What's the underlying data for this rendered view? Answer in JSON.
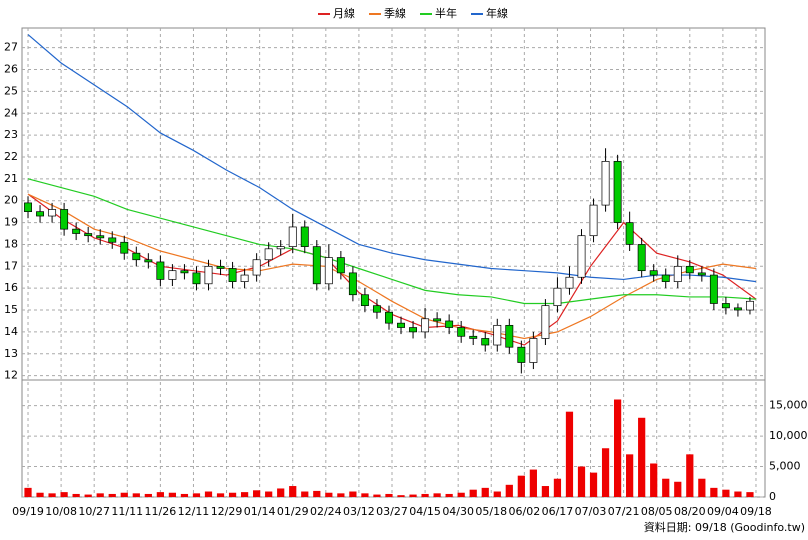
{
  "chart_data": {
    "type": "candlestick",
    "legend_position": "top",
    "grid": true,
    "footer": "資料日期: 09/18 (Goodinfo.tw)",
    "xlim": [
      -2,
      245
    ],
    "xticks": [
      {
        "value": 0,
        "label": "09/19"
      },
      {
        "value": 11,
        "label": "10/08"
      },
      {
        "value": 22,
        "label": "10/27"
      },
      {
        "value": 33,
        "label": "11/11"
      },
      {
        "value": 44,
        "label": "11/26"
      },
      {
        "value": 55,
        "label": "12/11"
      },
      {
        "value": 66,
        "label": "12/29"
      },
      {
        "value": 77,
        "label": "01/14"
      },
      {
        "value": 88,
        "label": "01/29"
      },
      {
        "value": 99,
        "label": "02/24"
      },
      {
        "value": 110,
        "label": "03/12"
      },
      {
        "value": 121,
        "label": "03/27"
      },
      {
        "value": 132,
        "label": "04/15"
      },
      {
        "value": 143,
        "label": "04/30"
      },
      {
        "value": 154,
        "label": "05/18"
      },
      {
        "value": 165,
        "label": "06/02"
      },
      {
        "value": 176,
        "label": "06/17"
      },
      {
        "value": 187,
        "label": "07/03"
      },
      {
        "value": 198,
        "label": "07/21"
      },
      {
        "value": 209,
        "label": "08/05"
      },
      {
        "value": 220,
        "label": "08/20"
      },
      {
        "value": 231,
        "label": "09/04"
      },
      {
        "value": 242,
        "label": "09/18"
      }
    ],
    "ylim": [
      11.8,
      27.9
    ],
    "yticks": [
      12,
      13,
      14,
      15,
      16,
      17,
      18,
      19,
      20,
      21,
      22,
      23,
      24,
      25,
      26,
      27
    ],
    "up_color": "#ffffff",
    "down_color": "#00cc00",
    "candles": {
      "x": [
        0,
        4,
        8,
        12,
        16,
        20,
        24,
        28,
        32,
        36,
        40,
        44,
        48,
        52,
        56,
        60,
        64,
        68,
        72,
        76,
        80,
        84,
        88,
        92,
        96,
        100,
        104,
        108,
        112,
        116,
        120,
        124,
        128,
        132,
        136,
        140,
        144,
        148,
        152,
        156,
        160,
        164,
        168,
        172,
        176,
        180,
        184,
        188,
        192,
        196,
        200,
        204,
        208,
        212,
        216,
        220,
        224,
        228,
        232,
        236,
        240
      ],
      "open": [
        19.9,
        19.5,
        19.3,
        19.6,
        18.7,
        18.5,
        18.4,
        18.3,
        18.1,
        17.6,
        17.3,
        17.2,
        16.4,
        16.8,
        16.7,
        16.2,
        17.0,
        16.9,
        16.3,
        16.6,
        17.3,
        17.8,
        17.9,
        18.8,
        17.9,
        16.2,
        17.4,
        16.7,
        15.7,
        15.2,
        14.9,
        14.4,
        14.2,
        14.0,
        14.6,
        14.5,
        14.2,
        13.8,
        13.7,
        13.4,
        14.3,
        13.3,
        12.6,
        13.7,
        15.2,
        16.0,
        16.5,
        18.4,
        19.8,
        21.8,
        19.0,
        18.0,
        16.8,
        16.6,
        16.3,
        17.0,
        16.7,
        16.6,
        15.3,
        15.1,
        15.0
      ],
      "high": [
        20.2,
        19.8,
        19.9,
        19.9,
        19.0,
        18.8,
        18.7,
        18.6,
        18.4,
        17.9,
        17.6,
        17.5,
        17.1,
        17.1,
        17.0,
        17.3,
        17.3,
        17.2,
        16.9,
        17.6,
        18.1,
        18.2,
        19.4,
        19.1,
        18.2,
        18.0,
        17.7,
        17.0,
        16.0,
        15.5,
        15.2,
        14.7,
        14.5,
        15.1,
        14.9,
        14.8,
        14.5,
        14.1,
        14.0,
        14.6,
        14.6,
        13.6,
        14.0,
        15.5,
        16.5,
        17.0,
        18.7,
        20.1,
        22.4,
        22.1,
        19.5,
        18.3,
        17.1,
        16.9,
        17.5,
        17.3,
        17.0,
        16.9,
        15.6,
        15.3,
        15.6
      ],
      "low": [
        19.2,
        19.0,
        19.0,
        18.4,
        18.2,
        18.1,
        18.0,
        17.8,
        17.3,
        17.0,
        16.9,
        16.1,
        16.1,
        16.4,
        15.9,
        15.9,
        16.6,
        16.0,
        16.0,
        16.3,
        17.0,
        17.5,
        17.6,
        17.6,
        15.9,
        15.9,
        16.4,
        15.4,
        14.9,
        14.6,
        14.1,
        13.9,
        13.7,
        13.7,
        14.2,
        13.9,
        13.5,
        13.4,
        13.1,
        13.1,
        13.0,
        12.1,
        12.3,
        13.4,
        14.9,
        15.7,
        16.2,
        18.1,
        19.5,
        18.7,
        17.7,
        16.5,
        16.3,
        16.0,
        16.0,
        16.4,
        16.3,
        15.0,
        14.8,
        14.7,
        14.8
      ],
      "close": [
        19.5,
        19.3,
        19.6,
        18.7,
        18.5,
        18.4,
        18.3,
        18.1,
        17.6,
        17.3,
        17.2,
        16.4,
        16.8,
        16.7,
        16.2,
        17.0,
        16.9,
        16.3,
        16.6,
        17.3,
        17.8,
        17.9,
        18.8,
        17.9,
        16.2,
        17.4,
        16.7,
        15.7,
        15.2,
        14.9,
        14.4,
        14.2,
        14.0,
        14.6,
        14.5,
        14.2,
        13.8,
        13.7,
        13.4,
        14.3,
        13.3,
        12.6,
        13.7,
        15.2,
        16.0,
        16.5,
        18.4,
        19.8,
        21.8,
        19.0,
        18.0,
        16.8,
        16.6,
        16.3,
        17.0,
        16.7,
        16.6,
        15.3,
        15.1,
        15.0,
        15.4
      ]
    },
    "ma_x": [
      0,
      11,
      22,
      33,
      44,
      55,
      66,
      77,
      88,
      99,
      110,
      121,
      132,
      143,
      154,
      165,
      176,
      187,
      198,
      209,
      220,
      231,
      242
    ],
    "series": [
      {
        "name": "月線",
        "color": "#dd2222",
        "values": [
          20.3,
          19.2,
          18.3,
          17.8,
          17.0,
          16.8,
          16.6,
          17.0,
          17.8,
          17.4,
          15.8,
          14.8,
          14.2,
          14.3,
          13.9,
          13.4,
          14.5,
          17.0,
          19.0,
          17.6,
          17.2,
          16.6,
          15.5
        ]
      },
      {
        "name": "季線",
        "color": "#ee7722",
        "values": [
          20.3,
          19.6,
          18.7,
          18.3,
          17.7,
          17.3,
          16.9,
          16.8,
          17.1,
          17.0,
          16.3,
          15.4,
          14.6,
          14.2,
          14.0,
          13.7,
          14.0,
          14.7,
          15.6,
          16.4,
          16.8,
          17.1,
          16.9
        ]
      },
      {
        "name": "半年",
        "color": "#22cc22",
        "values": [
          21.0,
          20.6,
          20.2,
          19.6,
          19.2,
          18.8,
          18.4,
          18.0,
          17.8,
          17.4,
          16.9,
          16.4,
          15.9,
          15.7,
          15.6,
          15.3,
          15.3,
          15.5,
          15.7,
          15.7,
          15.6,
          15.6,
          15.5
        ]
      },
      {
        "name": "年線",
        "color": "#2266cc",
        "values": [
          27.6,
          26.3,
          25.3,
          24.3,
          23.1,
          22.3,
          21.4,
          20.6,
          19.6,
          18.8,
          18.0,
          17.6,
          17.3,
          17.1,
          16.9,
          16.8,
          16.7,
          16.5,
          16.4,
          16.6,
          16.6,
          16.5,
          16.3
        ]
      }
    ],
    "volume": {
      "color": "#ee0000",
      "ylim": [
        0,
        19200
      ],
      "yticks": [
        0,
        {
          "value": 5000,
          "label": "5,000"
        },
        {
          "value": 10000,
          "label": "10,000"
        },
        {
          "value": 15000,
          "label": "15,000"
        }
      ],
      "values": [
        1500,
        700,
        600,
        800,
        500,
        400,
        600,
        500,
        700,
        600,
        500,
        800,
        700,
        500,
        600,
        900,
        600,
        700,
        800,
        1100,
        900,
        1400,
        1800,
        900,
        1000,
        700,
        600,
        900,
        600,
        400,
        500,
        300,
        400,
        500,
        600,
        500,
        700,
        1200,
        1500,
        900,
        2000,
        3500,
        4500,
        1800,
        3000,
        14000,
        5000,
        4000,
        8000,
        16000,
        7000,
        13000,
        5500,
        3000,
        2500,
        7000,
        3000,
        1500,
        1200,
        900,
        800
      ]
    }
  }
}
